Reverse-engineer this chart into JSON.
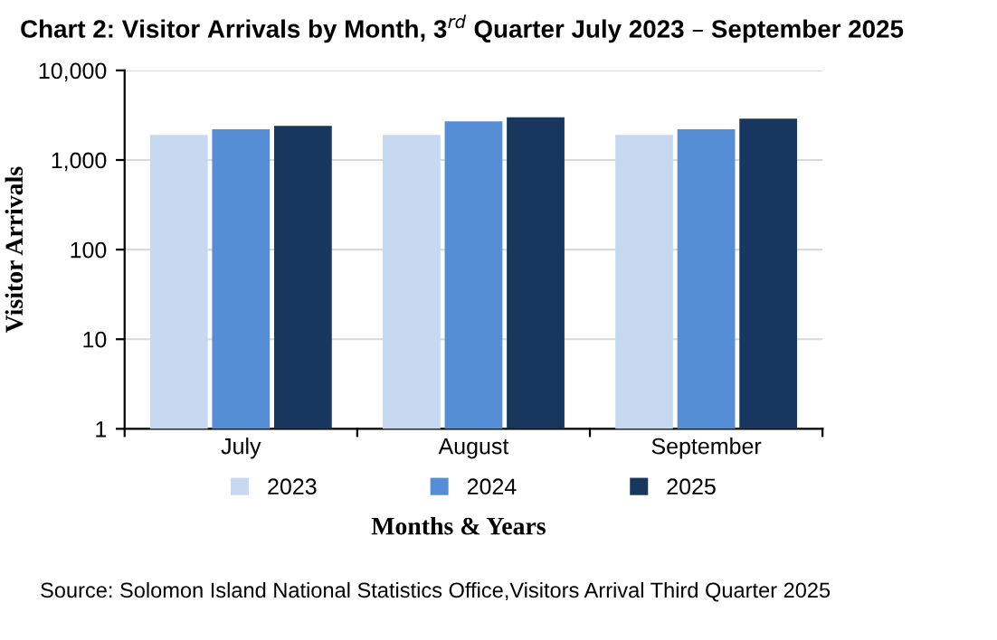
{
  "chart_data": {
    "type": "bar",
    "title": "Chart 2: Visitor Arrivals by Month, 3$^{rd}$ Quarter July 2023 – September 2025",
    "xlabel": "Months & Years",
    "ylabel": "Visitor Arrivals",
    "categories": [
      "July",
      "August",
      "September"
    ],
    "series": [
      {
        "name": "2023",
        "color": "#c6d9f0",
        "values": [
          1900,
          1900,
          1900
        ]
      },
      {
        "name": "2024",
        "color": "#558ed5",
        "values": [
          2200,
          2700,
          2200
        ]
      },
      {
        "name": "2025",
        "color": "#17375e",
        "values": [
          2400,
          3000,
          2900
        ]
      }
    ],
    "log": "y",
    "ylim": [
      1,
      10000
    ],
    "yticks": [
      {
        "value": 1,
        "label": "1"
      },
      {
        "value": 10,
        "label": "10"
      },
      {
        "value": 100,
        "label": "100"
      },
      {
        "value": 1000,
        "label": "1,000"
      },
      {
        "value": 10000,
        "label": "10,000"
      }
    ],
    "grid": "y",
    "legend": "bottom",
    "annotations": [
      "Source: Solomon Island National Statistics Office,Visitors Arrival Third Quarter 2025"
    ]
  }
}
